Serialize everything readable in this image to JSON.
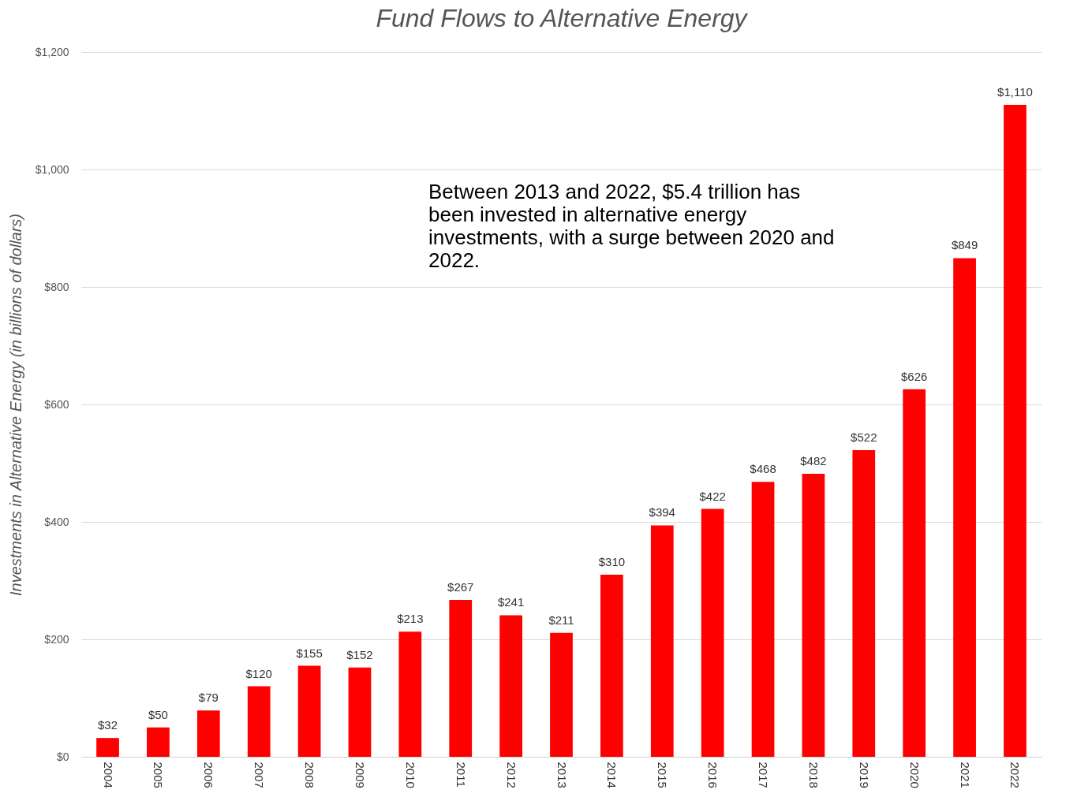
{
  "chart_data": {
    "type": "bar",
    "title": "Fund Flows to Alternative Energy",
    "ylabel": "Investments in Alternative Energy (in billions of dollars)",
    "categories": [
      "2004",
      "2005",
      "2006",
      "2007",
      "2008",
      "2009",
      "2010",
      "2011",
      "2012",
      "2013",
      "2014",
      "2015",
      "2016",
      "2017",
      "2018",
      "2019",
      "2020",
      "2021",
      "2022"
    ],
    "values": [
      32,
      50,
      79,
      120,
      155,
      152,
      213,
      267,
      241,
      211,
      310,
      394,
      422,
      468,
      482,
      522,
      626,
      849,
      1110
    ],
    "value_labels": [
      "$32",
      "$50",
      "$79",
      "$120",
      "$155",
      "$152",
      "$213",
      "$267",
      "$241",
      "$211",
      "$310",
      "$394",
      "$422",
      "$468",
      "$482",
      "$522",
      "$626",
      "$849",
      "$1,110"
    ],
    "color": "#ff0000",
    "ylim": [
      0,
      1200
    ],
    "yticks": [
      {
        "value": 0,
        "label": "$0"
      },
      {
        "value": 200,
        "label": "$200"
      },
      {
        "value": 400,
        "label": "$400"
      },
      {
        "value": 600,
        "label": "$600"
      },
      {
        "value": 800,
        "label": "$800"
      },
      {
        "value": 1000,
        "label": "$1,000"
      },
      {
        "value": 1200,
        "label": "$1,200"
      }
    ],
    "grid": "y",
    "annotations": [
      "Between 2013 and 2022, $5.4 trillion has been invested in alternative energy investments, with a surge between 2020 and 2022."
    ]
  }
}
